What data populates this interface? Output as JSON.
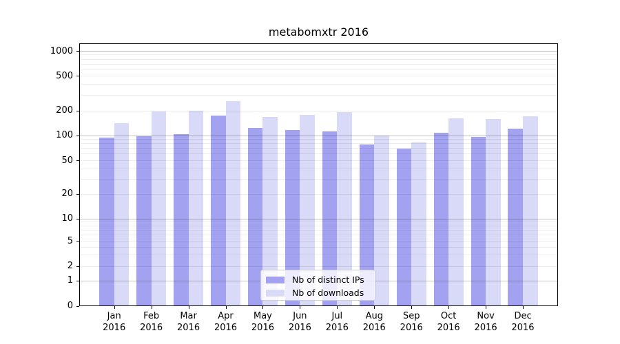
{
  "chart_data": {
    "type": "bar",
    "title": "metabomxtr 2016",
    "categories": [
      "Jan",
      "Feb",
      "Mar",
      "Apr",
      "May",
      "Jun",
      "Jul",
      "Aug",
      "Sep",
      "Oct",
      "Nov",
      "Dec"
    ],
    "x_tick_second_line": "2016",
    "series": [
      {
        "name": "Nb of distinct IPs",
        "color": "#a2a2f0",
        "values": [
          93,
          97,
          102,
          173,
          122,
          115,
          111,
          77,
          69,
          108,
          96,
          119
        ]
      },
      {
        "name": "Nb of downloads",
        "color": "#d9d9f8",
        "values": [
          140,
          193,
          197,
          255,
          166,
          176,
          190,
          100,
          82,
          160,
          158,
          170
        ]
      }
    ],
    "yticks": [
      0,
      1,
      2,
      5,
      10,
      20,
      50,
      100,
      200,
      500,
      1000
    ],
    "ylim": [
      0,
      1000
    ],
    "yscale": "symlog",
    "grid": true,
    "legend_position": "lower center inside"
  }
}
